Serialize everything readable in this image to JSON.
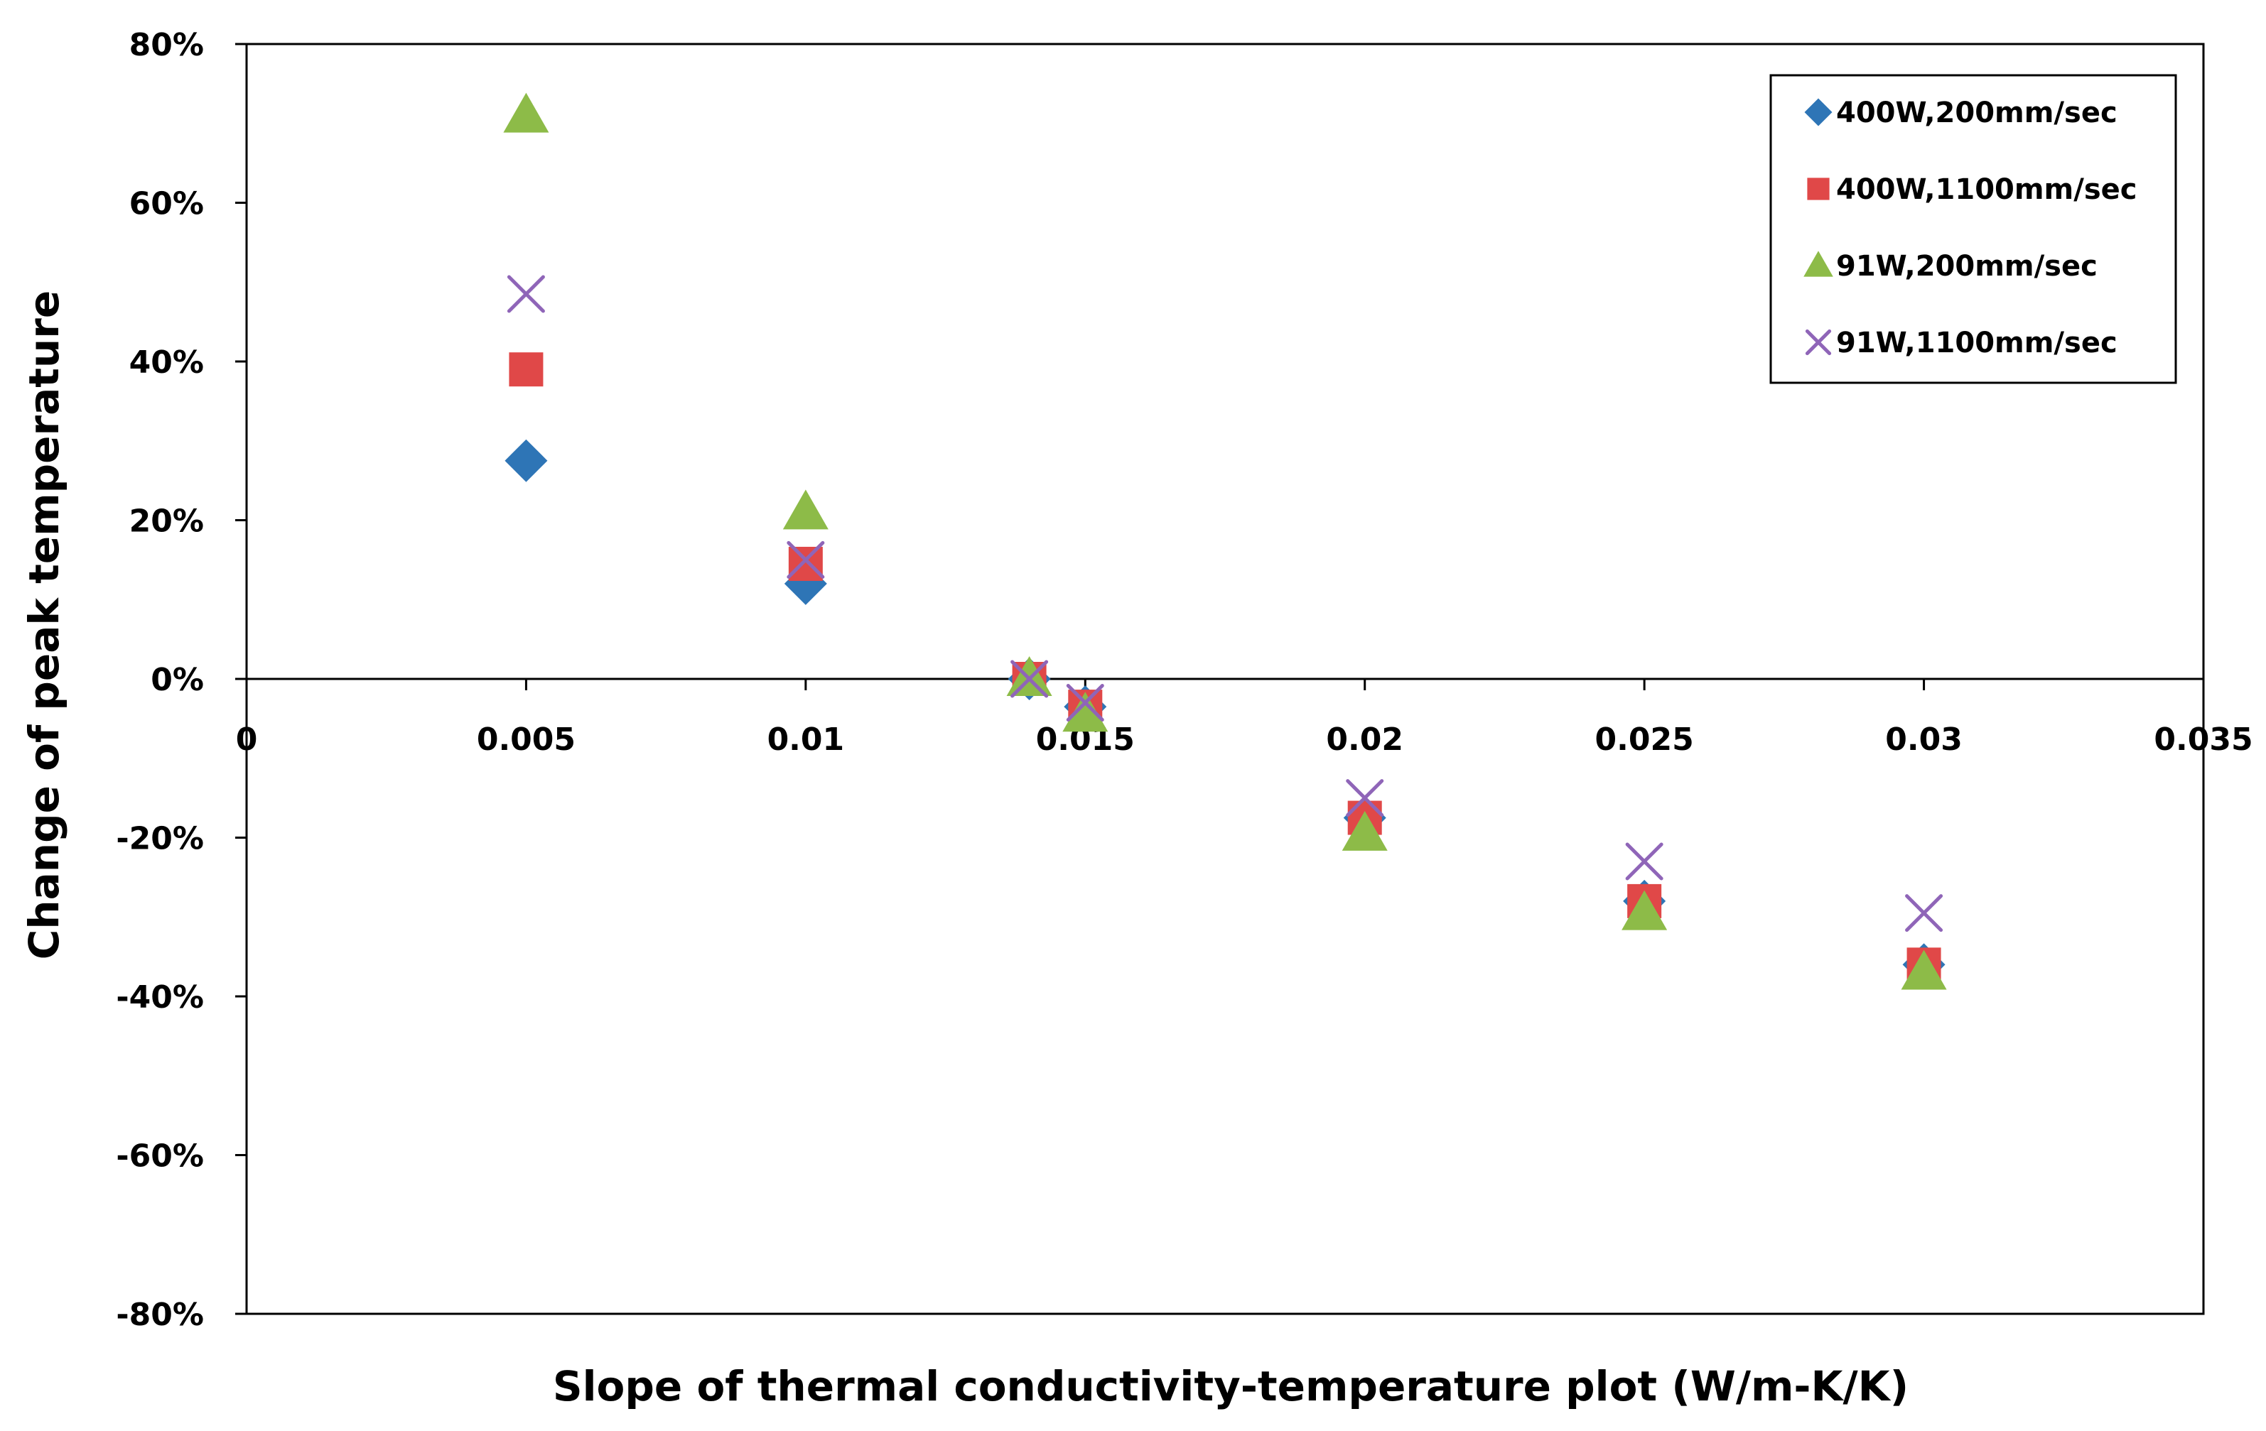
{
  "chart_data": {
    "type": "scatter",
    "title": "",
    "xlabel": "Slope of thermal conductivity-temperature plot (W/m-K/K)",
    "ylabel": "Change of peak temperature",
    "xlim": [
      0,
      0.035
    ],
    "ylim": [
      -80,
      80
    ],
    "x_ticks": [
      0,
      0.005,
      0.01,
      0.015,
      0.02,
      0.025,
      0.03,
      0.035
    ],
    "x_tick_labels": [
      "0",
      "0.005",
      "0.01",
      "0.015",
      "0.02",
      "0.025",
      "0.03",
      "0.035"
    ],
    "y_ticks": [
      80,
      60,
      40,
      20,
      0,
      -20,
      -40,
      -60,
      -80
    ],
    "y_tick_labels": [
      "80%",
      "60%",
      "40%",
      "20%",
      "0%",
      "-20%",
      "-40%",
      "-60%",
      "-80%"
    ],
    "y_unit": "percent",
    "grid": false,
    "legend_position": "top-right",
    "series": [
      {
        "name": "400W,200mm/sec",
        "marker": "diamond",
        "color": "#2E75B6",
        "x": [
          0.005,
          0.01,
          0.014,
          0.015,
          0.02,
          0.025,
          0.03
        ],
        "y": [
          27.5,
          12,
          0,
          -3.5,
          -17.5,
          -28,
          -36
        ]
      },
      {
        "name": "400W,1100mm/sec",
        "marker": "square",
        "color": "#E04848",
        "x": [
          0.005,
          0.01,
          0.014,
          0.015,
          0.02,
          0.025,
          0.03
        ],
        "y": [
          39,
          14.5,
          0,
          -3.5,
          -17.5,
          -28,
          -36
        ]
      },
      {
        "name": "91W,200mm/sec",
        "marker": "triangle",
        "color": "#8DBB48",
        "x": [
          0.005,
          0.01,
          0.014,
          0.015,
          0.02,
          0.025,
          0.03
        ],
        "y": [
          71,
          21,
          0,
          -4.5,
          -19.5,
          -29.5,
          -37
        ]
      },
      {
        "name": "91W,1100mm/sec",
        "marker": "x",
        "color": "#8F65B8",
        "x": [
          0.005,
          0.01,
          0.014,
          0.015,
          0.02,
          0.025,
          0.03
        ],
        "y": [
          48.5,
          15,
          0,
          -3,
          -15,
          -23,
          -29.5
        ]
      }
    ]
  }
}
